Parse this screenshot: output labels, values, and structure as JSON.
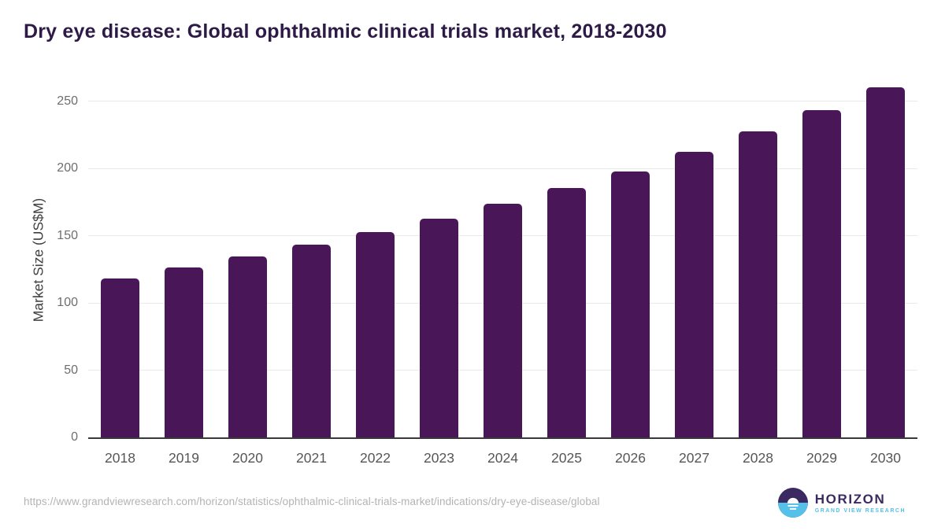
{
  "chart_data": {
    "type": "bar",
    "title": "Dry eye disease: Global ophthalmic clinical trials market, 2018-2030",
    "ylabel": "Market Size (US$M)",
    "xlabel": "",
    "categories": [
      "2018",
      "2019",
      "2020",
      "2021",
      "2022",
      "2023",
      "2024",
      "2025",
      "2026",
      "2027",
      "2028",
      "2029",
      "2030"
    ],
    "values": [
      118.4,
      126.2,
      134.4,
      143.5,
      152.7,
      162.9,
      173.6,
      185.4,
      197.6,
      212.1,
      227.3,
      243.1,
      260.6
    ],
    "yticks": [
      0,
      50,
      100,
      150,
      200,
      250
    ],
    "ylim": [
      0,
      265
    ],
    "grid": "horizontal",
    "legend": "none",
    "bar_color": "#491758"
  },
  "colors": {
    "title": "#2e1a47",
    "bar": "#491758",
    "gridline": "#e9e9e9",
    "axis_line": "#3a3a3a",
    "tick_label": "#6e6e6e",
    "x_label": "#565656",
    "footer": "#b3b3b3",
    "logo_purple": "#3b2a61",
    "logo_blue": "#56c1e8"
  },
  "footer": {
    "source_url": "https://www.grandviewresearch.com/horizon/statistics/ophthalmic-clinical-trials-market/indications/dry-eye-disease/global"
  },
  "logo": {
    "name": "HORIZON",
    "subtitle": "GRAND VIEW RESEARCH",
    "sun_icon": "horizon-sun-over-water-icon"
  }
}
